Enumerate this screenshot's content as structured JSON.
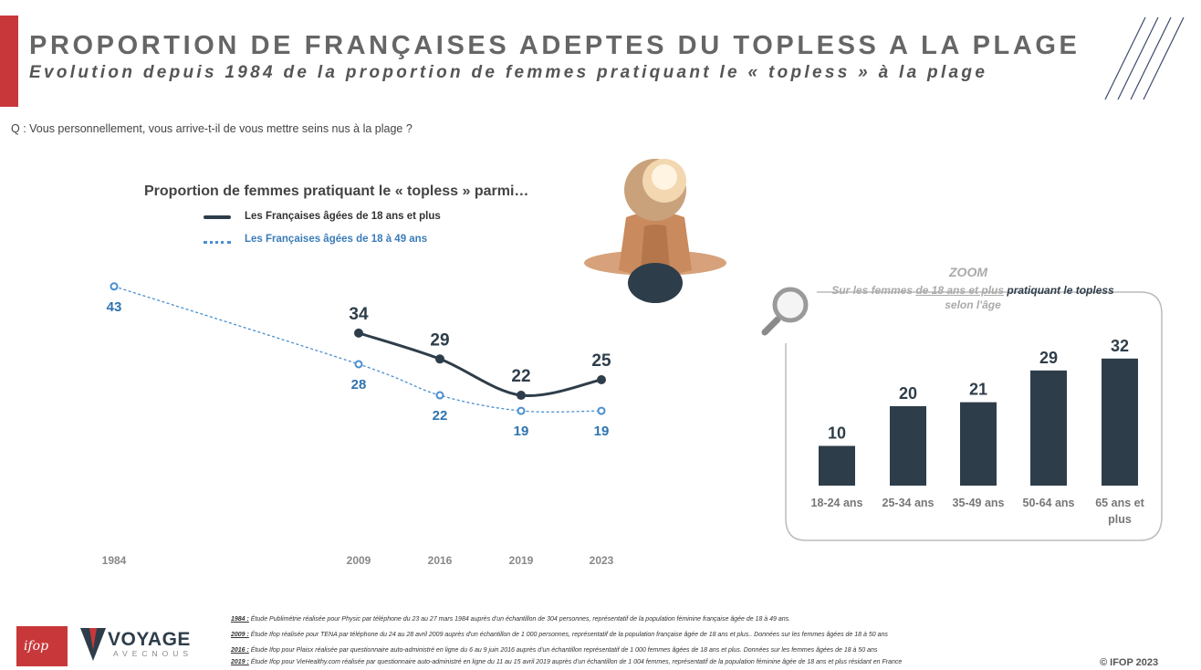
{
  "header": {
    "title": "PROPORTION DE FRANÇAISES ADEPTES DU TOPLESS A LA PLAGE",
    "subtitle": "Evolution depuis 1984 de la proportion de femmes pratiquant le « topless » à la plage"
  },
  "question": "Q : Vous personnellement, vous arrive-t-il de vous mettre seins nus à la plage ?",
  "chart_data": [
    {
      "type": "line",
      "title": "Proportion de femmes pratiquant le « topless » parmi…",
      "x": [
        "1984",
        "2009",
        "2016",
        "2019",
        "2023"
      ],
      "series": [
        {
          "name": "Les Françaises âgées de 18 ans et plus",
          "values": [
            null,
            34,
            29,
            22,
            25
          ],
          "color": "#2e3d4a",
          "style": "solid"
        },
        {
          "name": "Les Françaises âgées de 18 à 49 ans",
          "values": [
            43,
            28,
            22,
            19,
            19
          ],
          "color": "#4a8fcf",
          "style": "dotted"
        }
      ],
      "ylim": [
        0,
        50
      ],
      "grid": false,
      "legend": "top-left"
    },
    {
      "type": "bar",
      "title": "ZOOM",
      "subtitle_parts": [
        "Sur les femmes ",
        "de 18 ans et plus",
        " pratiquant le topless",
        " selon l'âge"
      ],
      "categories": [
        "18-24 ans",
        "25-34 ans",
        "35-49 ans",
        "50-64 ans",
        "65 ans et plus"
      ],
      "values": [
        10,
        20,
        21,
        29,
        32
      ],
      "color": "#2e3d4a",
      "ylim": [
        0,
        35
      ]
    }
  ],
  "footnotes": [
    {
      "year": "1984 :",
      "text": " Étude Publimétrie réalisée pour Physic par téléphone du 23 au 27 mars 1984 auprès d'un échantillon de 304 personnes, représentatif de la population féminine française âgée de 18 à 49 ans."
    },
    {
      "year": "2009 :",
      "text": " Étude Ifop réalisée pour TENA par téléphone du 24 au 28 avril 2009 auprès d'un échantillon de 1 000 personnes, représentatif de la population française âgée de 18 ans et plus.. Données sur les femmes âgées de 18 à 50 ans"
    },
    {
      "year": "2016 :",
      "text": " Étude Ifop pour Plaisx réalisée par questionnaire auto-administré en ligne du 6 au 9 juin 2016 auprès d'un échantillon représentatif de 1 000 femmes âgées de 18 ans et plus. Données sur les femmes âgées de 18 à 50 ans"
    },
    {
      "year": "2019 :",
      "text": " Étude Ifop pour VieHealthy.com réalisée par questionnaire auto-administré en ligne du 11 au 15 avril 2019 auprès d'un échantillon de 1 004 femmes, représentatif de la population féminine âgée de 18 ans et plus résidant en France"
    }
  ],
  "logos": {
    "ifop": "ifop",
    "voyage": "VOYAGE",
    "voyage_sub": "AVECNOUS"
  },
  "copyright": "© IFOP 2023"
}
